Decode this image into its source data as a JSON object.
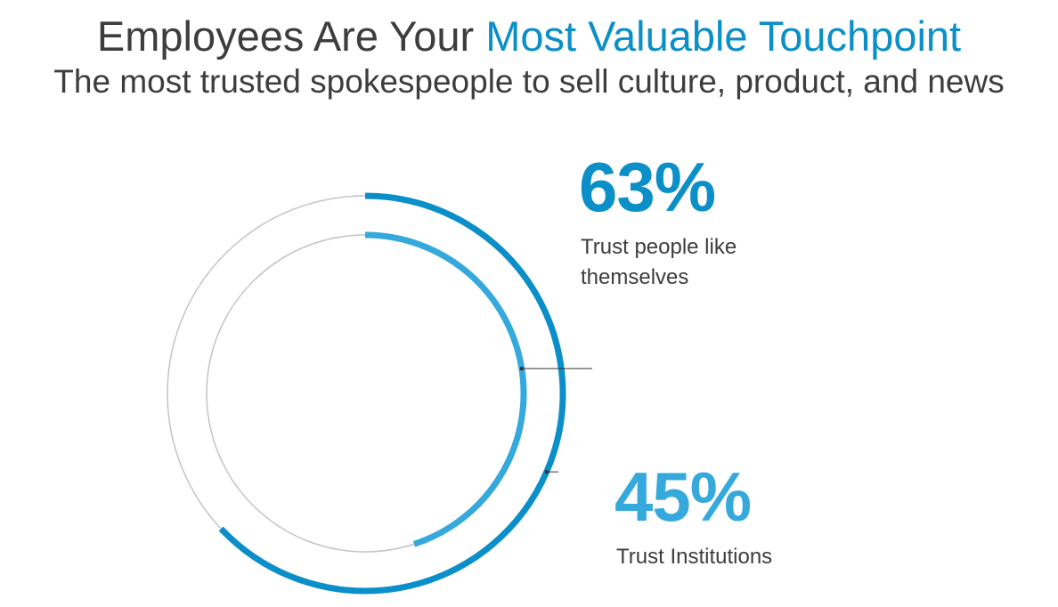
{
  "header": {
    "title_main": "Employees Are Your ",
    "title_accent": "Most Valuable Touchpoint",
    "subtitle": "The most trusted spokespeople to sell culture, product, and news"
  },
  "colors": {
    "text": "#3d3d3d",
    "accent": "#0a8fc8",
    "outer_ring": "#0a8fc8",
    "inner_ring": "#35a9dc",
    "track": "#c4c4c4",
    "leader": "#333333"
  },
  "stats": [
    {
      "value": "63%",
      "label": "Trust people like themselves"
    },
    {
      "value": "45%",
      "label": "Trust Institutions"
    }
  ],
  "chart_data": {
    "type": "radial-bar",
    "series": [
      {
        "name": "Trust people like themselves",
        "value": 63,
        "unit": "%"
      },
      {
        "name": "Trust Institutions",
        "value": 45,
        "unit": "%"
      }
    ],
    "max": 100,
    "start": "top",
    "direction": "clockwise"
  }
}
